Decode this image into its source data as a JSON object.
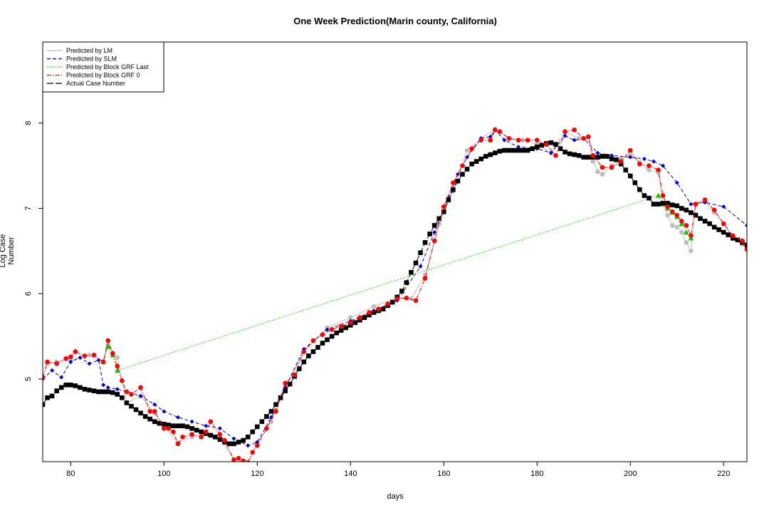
{
  "chart_data": {
    "type": "line",
    "title": "One Week Prediction(Marin county, California)",
    "xlabel": "days",
    "ylabel": "Log Case Number",
    "xlim": [
      74,
      225
    ],
    "ylim": [
      4.03,
      8.95
    ],
    "xticks": [
      80,
      100,
      120,
      140,
      160,
      180,
      200,
      220
    ],
    "yticks": [
      5,
      6,
      7,
      8
    ],
    "legend_position": "top-left",
    "series": [
      {
        "name": "Predicted by LM",
        "color": "#bebebe",
        "line_style": "solid",
        "marker": "circle",
        "x": [
          75,
          77,
          80,
          84,
          87,
          88,
          90,
          92,
          95,
          98,
          100,
          103,
          106,
          109,
          112,
          115,
          118,
          120,
          123,
          126,
          130,
          135,
          140,
          145,
          150,
          153,
          156,
          159,
          162,
          165,
          168,
          171,
          174,
          177,
          180,
          183,
          186,
          189,
          191,
          192,
          193,
          194,
          196,
          198,
          200,
          202,
          204,
          206,
          207,
          208,
          209,
          210,
          211,
          212,
          213,
          214,
          216,
          218,
          220,
          222,
          224,
          225
        ],
        "y": [
          5.18,
          5.2,
          5.22,
          5.28,
          5.2,
          5.4,
          5.25,
          4.72,
          4.8,
          4.6,
          4.44,
          4.25,
          4.32,
          4.36,
          4.3,
          4.06,
          4.02,
          4.24,
          4.5,
          4.9,
          5.32,
          5.6,
          5.72,
          5.85,
          5.95,
          5.94,
          6.22,
          6.82,
          7.2,
          7.68,
          7.82,
          7.93,
          7.82,
          7.8,
          7.75,
          7.65,
          7.9,
          7.82,
          7.84,
          7.55,
          7.43,
          7.4,
          7.5,
          7.58,
          7.62,
          7.54,
          7.45,
          7.42,
          7.05,
          6.92,
          6.8,
          6.78,
          6.72,
          6.6,
          6.5,
          7.05,
          7.08,
          6.95,
          6.82,
          6.65,
          6.58,
          6.52
        ]
      },
      {
        "name": "Predicted by SLM",
        "color": "#0000cd",
        "line_style": "dashed",
        "marker": "diamond",
        "x": [
          74,
          76,
          78,
          80,
          82,
          84,
          86,
          87,
          88,
          90,
          92,
          95,
          98,
          100,
          103,
          106,
          109,
          112,
          115,
          118,
          120,
          123,
          126,
          130,
          135,
          140,
          145,
          150,
          155,
          158,
          161,
          163,
          165,
          168,
          170,
          171,
          173,
          176,
          180,
          183,
          186,
          188,
          190,
          193,
          196,
          200,
          203,
          205,
          207,
          210,
          213,
          216,
          220,
          225
        ],
        "y": [
          5.0,
          5.1,
          5.02,
          5.2,
          5.25,
          5.18,
          5.22,
          4.93,
          4.9,
          4.88,
          4.85,
          4.8,
          4.7,
          4.62,
          4.55,
          4.5,
          4.45,
          4.42,
          4.3,
          4.22,
          4.26,
          4.55,
          4.9,
          5.35,
          5.58,
          5.68,
          5.8,
          5.92,
          6.32,
          6.72,
          7.12,
          7.4,
          7.6,
          7.82,
          7.84,
          7.92,
          7.8,
          7.72,
          7.7,
          7.65,
          7.85,
          7.8,
          7.82,
          7.65,
          7.62,
          7.6,
          7.58,
          7.55,
          7.5,
          7.3,
          7.05,
          7.07,
          7.02,
          6.8
        ]
      },
      {
        "name": "Predicted by Block GRF Last",
        "color": "#00cc00",
        "line_style": "dotted",
        "marker": "triangle",
        "x": [
          87,
          88,
          89,
          90,
          206,
          207,
          208,
          209,
          210,
          211,
          212,
          213
        ],
        "y": [
          5.2,
          5.38,
          5.28,
          5.1,
          7.15,
          7.05,
          7.0,
          6.95,
          6.9,
          6.82,
          6.72,
          6.65
        ]
      },
      {
        "name": "Predicted by Block GRF 0",
        "color": "#ff0000",
        "line_style": "dashdot",
        "marker": "circle",
        "x": [
          74,
          75,
          77,
          79,
          80,
          81,
          83,
          85,
          87,
          88,
          89,
          90,
          91,
          92,
          93,
          95,
          97,
          98,
          100,
          101,
          102,
          103,
          104,
          106,
          108,
          109,
          110,
          112,
          113,
          115,
          116,
          117,
          118,
          119,
          120,
          122,
          124,
          126,
          128,
          130,
          132,
          134,
          136,
          138,
          140,
          142,
          144,
          146,
          148,
          150,
          152,
          154,
          156,
          158,
          160,
          162,
          164,
          166,
          168,
          170,
          171,
          172,
          174,
          176,
          178,
          180,
          182,
          184,
          186,
          188,
          190,
          191,
          192,
          194,
          196,
          198,
          200,
          202,
          204,
          206,
          207,
          208,
          209,
          210,
          211,
          212,
          213,
          214,
          216,
          218,
          220,
          222,
          224,
          225
        ],
        "y": [
          5.02,
          5.2,
          5.18,
          5.24,
          5.26,
          5.32,
          5.27,
          5.28,
          5.2,
          5.45,
          5.3,
          5.15,
          4.98,
          4.85,
          4.82,
          4.9,
          4.62,
          4.62,
          4.42,
          4.42,
          4.38,
          4.24,
          4.32,
          4.35,
          4.32,
          4.38,
          4.5,
          4.35,
          4.28,
          4.05,
          4.07,
          4.04,
          4.02,
          4.14,
          4.22,
          4.42,
          4.62,
          4.95,
          5.05,
          5.32,
          5.45,
          5.52,
          5.58,
          5.62,
          5.66,
          5.72,
          5.78,
          5.82,
          5.88,
          5.94,
          5.95,
          5.92,
          6.18,
          6.62,
          7.02,
          7.3,
          7.5,
          7.7,
          7.8,
          7.8,
          7.92,
          7.9,
          7.82,
          7.8,
          7.8,
          7.8,
          7.75,
          7.62,
          7.9,
          7.92,
          7.82,
          7.84,
          7.62,
          7.48,
          7.48,
          7.55,
          7.68,
          7.52,
          7.5,
          7.45,
          7.15,
          7.02,
          6.96,
          6.92,
          6.85,
          6.8,
          6.68,
          7.05,
          7.1,
          6.98,
          6.82,
          6.68,
          6.62,
          6.52
        ]
      },
      {
        "name": "Actual Case Number",
        "color": "#000000",
        "line_style": "longdash",
        "marker": "square",
        "x": [
          74,
          75,
          76,
          77,
          78,
          79,
          80,
          81,
          82,
          83,
          84,
          85,
          86,
          87,
          88,
          89,
          90,
          91,
          92,
          93,
          94,
          95,
          96,
          97,
          98,
          99,
          100,
          101,
          102,
          103,
          104,
          105,
          106,
          107,
          108,
          109,
          110,
          111,
          112,
          113,
          114,
          115,
          116,
          117,
          118,
          119,
          120,
          121,
          122,
          123,
          124,
          125,
          126,
          127,
          128,
          129,
          130,
          131,
          132,
          133,
          134,
          135,
          136,
          137,
          138,
          139,
          140,
          141,
          142,
          143,
          144,
          145,
          146,
          147,
          148,
          149,
          150,
          151,
          152,
          153,
          154,
          155,
          156,
          157,
          158,
          159,
          160,
          161,
          162,
          163,
          164,
          165,
          166,
          167,
          168,
          169,
          170,
          171,
          172,
          173,
          174,
          175,
          176,
          177,
          178,
          179,
          180,
          181,
          182,
          183,
          184,
          185,
          186,
          187,
          188,
          189,
          190,
          191,
          192,
          193,
          194,
          195,
          196,
          197,
          198,
          199,
          200,
          201,
          202,
          203,
          204,
          205,
          206,
          207,
          208,
          209,
          210,
          211,
          212,
          213,
          214,
          215,
          216,
          217,
          218,
          219,
          220,
          221,
          222,
          223,
          224,
          225
        ],
        "y": [
          4.7,
          4.78,
          4.8,
          4.86,
          4.9,
          4.93,
          4.93,
          4.92,
          4.9,
          4.88,
          4.87,
          4.86,
          4.85,
          4.85,
          4.85,
          4.84,
          4.82,
          4.78,
          4.72,
          4.68,
          4.64,
          4.6,
          4.56,
          4.53,
          4.5,
          4.48,
          4.47,
          4.46,
          4.45,
          4.45,
          4.45,
          4.44,
          4.42,
          4.4,
          4.38,
          4.36,
          4.34,
          4.32,
          4.29,
          4.26,
          4.24,
          4.24,
          4.26,
          4.28,
          4.32,
          4.38,
          4.44,
          4.5,
          4.56,
          4.62,
          4.7,
          4.78,
          4.86,
          4.94,
          5.03,
          5.12,
          5.2,
          5.27,
          5.32,
          5.37,
          5.42,
          5.46,
          5.5,
          5.54,
          5.57,
          5.6,
          5.63,
          5.66,
          5.69,
          5.72,
          5.75,
          5.78,
          5.8,
          5.82,
          5.86,
          5.9,
          5.96,
          6.03,
          6.13,
          6.25,
          6.36,
          6.48,
          6.6,
          6.7,
          6.8,
          6.88,
          6.96,
          7.1,
          7.22,
          7.32,
          7.4,
          7.46,
          7.52,
          7.55,
          7.58,
          7.61,
          7.63,
          7.65,
          7.67,
          7.68,
          7.68,
          7.68,
          7.68,
          7.68,
          7.68,
          7.7,
          7.72,
          7.74,
          7.76,
          7.77,
          7.75,
          7.7,
          7.66,
          7.64,
          7.63,
          7.62,
          7.6,
          7.6,
          7.6,
          7.6,
          7.61,
          7.61,
          7.58,
          7.57,
          7.52,
          7.45,
          7.38,
          7.3,
          7.22,
          7.15,
          7.12,
          7.05,
          7.05,
          7.06,
          7.06,
          7.04,
          7.03,
          7.0,
          6.98,
          6.95,
          6.92,
          6.88,
          6.85,
          6.82,
          6.78,
          6.75,
          6.72,
          6.69,
          6.65,
          6.63,
          6.6,
          6.57
        ]
      }
    ]
  }
}
